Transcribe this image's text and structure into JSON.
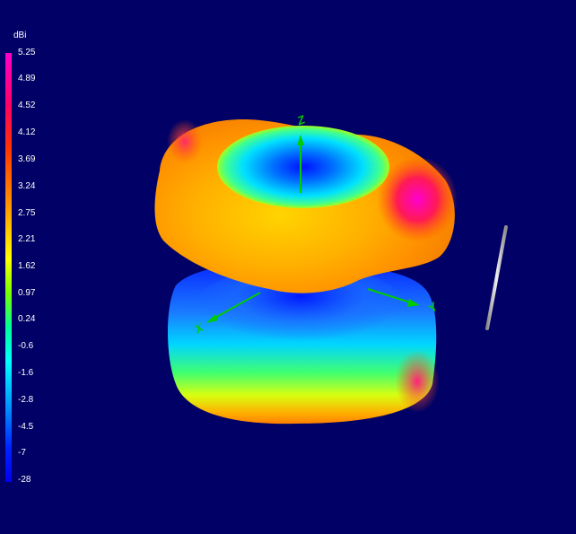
{
  "legend": {
    "unit": "dBi",
    "ticks": [
      "5.25",
      "4.89",
      "4.52",
      "4.12",
      "3.69",
      "3.24",
      "2.75",
      "2.21",
      "1.62",
      "0.97",
      "0.24",
      "-0.6",
      "-1.6",
      "-2.8",
      "-4.5",
      "-7",
      "-28"
    ]
  },
  "axes": {
    "x": "X",
    "y": "Y",
    "z": "Z"
  },
  "colors": {
    "background": "#000066",
    "max": "#ff00cc",
    "min": "#0000ee",
    "axis": "#00cc00"
  }
}
